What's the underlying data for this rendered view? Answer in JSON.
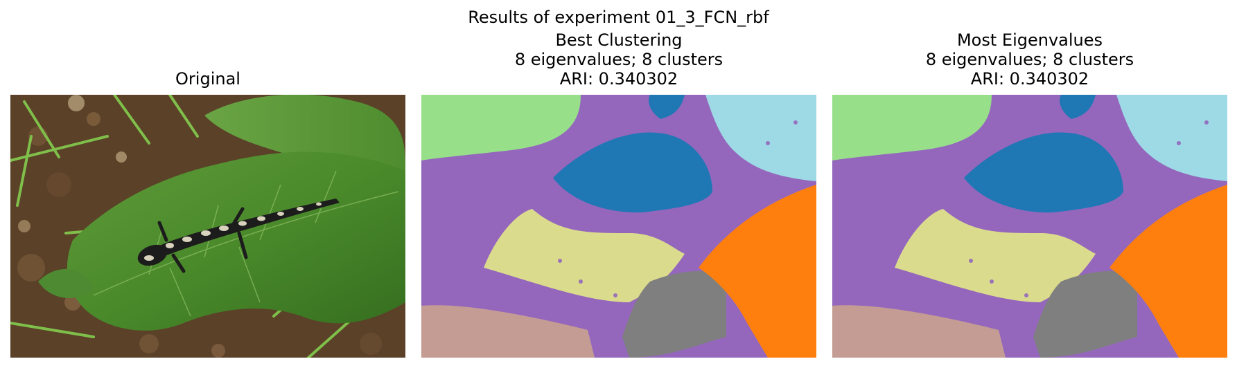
{
  "figure": {
    "suptitle": "Results of experiment 01_3_FCN_rbf",
    "panels": [
      {
        "kind": "original-photo",
        "title_lines": [
          "Original"
        ]
      },
      {
        "kind": "segmentation-map",
        "title_lines": [
          "Best Clustering",
          "8 eigenvalues; 8 clusters",
          "ARI: 0.340302"
        ]
      },
      {
        "kind": "segmentation-map",
        "title_lines": [
          "Most Eigenvalues",
          "8 eigenvalues; 8 clusters",
          "ARI: 0.340302"
        ]
      }
    ]
  },
  "photo_subject": "salamander on a green leaf over soil and grass",
  "cluster_colors": {
    "green": "#98df8a",
    "purple": "#9467bd",
    "blue": "#1f77b4",
    "light_blue": "#9edae5",
    "orange": "#ff7f0e",
    "olive": "#dbdb8d",
    "gray": "#7f7f7f",
    "brown": "#c49c94"
  }
}
